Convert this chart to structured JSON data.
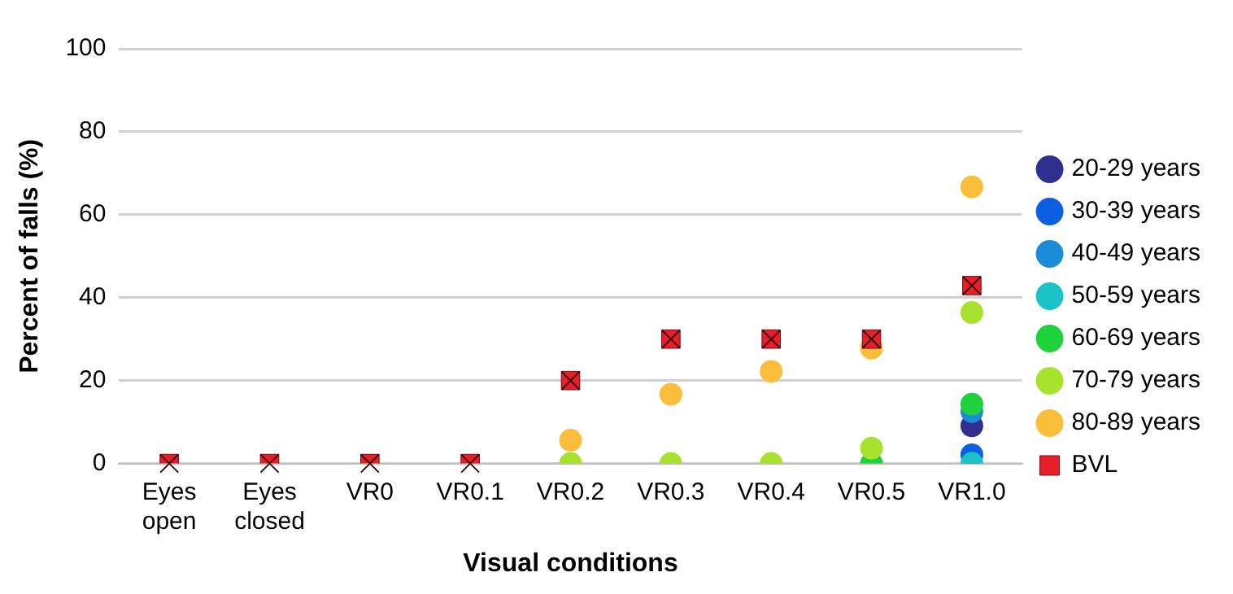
{
  "chart_data": {
    "type": "scatter",
    "xlabel": "Visual conditions",
    "ylabel": "Percent of falls (%)",
    "categories": [
      "Eyes open",
      "Eyes closed",
      "VR0",
      "VR0.1",
      "VR0.2",
      "VR0.3",
      "VR0.4",
      "VR0.5",
      "VR1.0"
    ],
    "series": [
      {
        "name": "20-29 years",
        "color": "#2e2f8e",
        "values": [
          null,
          null,
          null,
          null,
          null,
          null,
          null,
          null,
          9.1
        ]
      },
      {
        "name": "30-39 years",
        "color": "#0b5fe0",
        "values": [
          null,
          null,
          null,
          null,
          null,
          null,
          null,
          null,
          2.1
        ]
      },
      {
        "name": "40-49 years",
        "color": "#1b8bd8",
        "values": [
          null,
          null,
          null,
          null,
          null,
          null,
          null,
          null,
          12.5
        ]
      },
      {
        "name": "50-59 years",
        "color": "#18c2c6",
        "values": [
          null,
          null,
          null,
          null,
          null,
          null,
          null,
          null,
          0
        ]
      },
      {
        "name": "60-69 years",
        "color": "#1fd23c",
        "values": [
          null,
          null,
          null,
          null,
          null,
          null,
          null,
          0,
          14.3
        ]
      },
      {
        "name": "70-79 years",
        "color": "#a8e22e",
        "values": [
          null,
          null,
          null,
          null,
          0,
          0,
          0,
          3.7,
          36.4
        ]
      },
      {
        "name": "80-89 years",
        "color": "#fbbe3b",
        "values": [
          null,
          null,
          null,
          null,
          5.6,
          16.7,
          22.2,
          27.8,
          66.7
        ]
      },
      {
        "name": "BVL",
        "color": "#e81e28",
        "marker": "square",
        "values": [
          0,
          0,
          0,
          0,
          20,
          30,
          30,
          30,
          42.9
        ]
      }
    ],
    "ylim": [
      0,
      100
    ],
    "yticks": [
      0,
      20,
      40,
      60,
      80,
      100
    ],
    "grid": "y",
    "legend": "right",
    "marker": "circle"
  }
}
